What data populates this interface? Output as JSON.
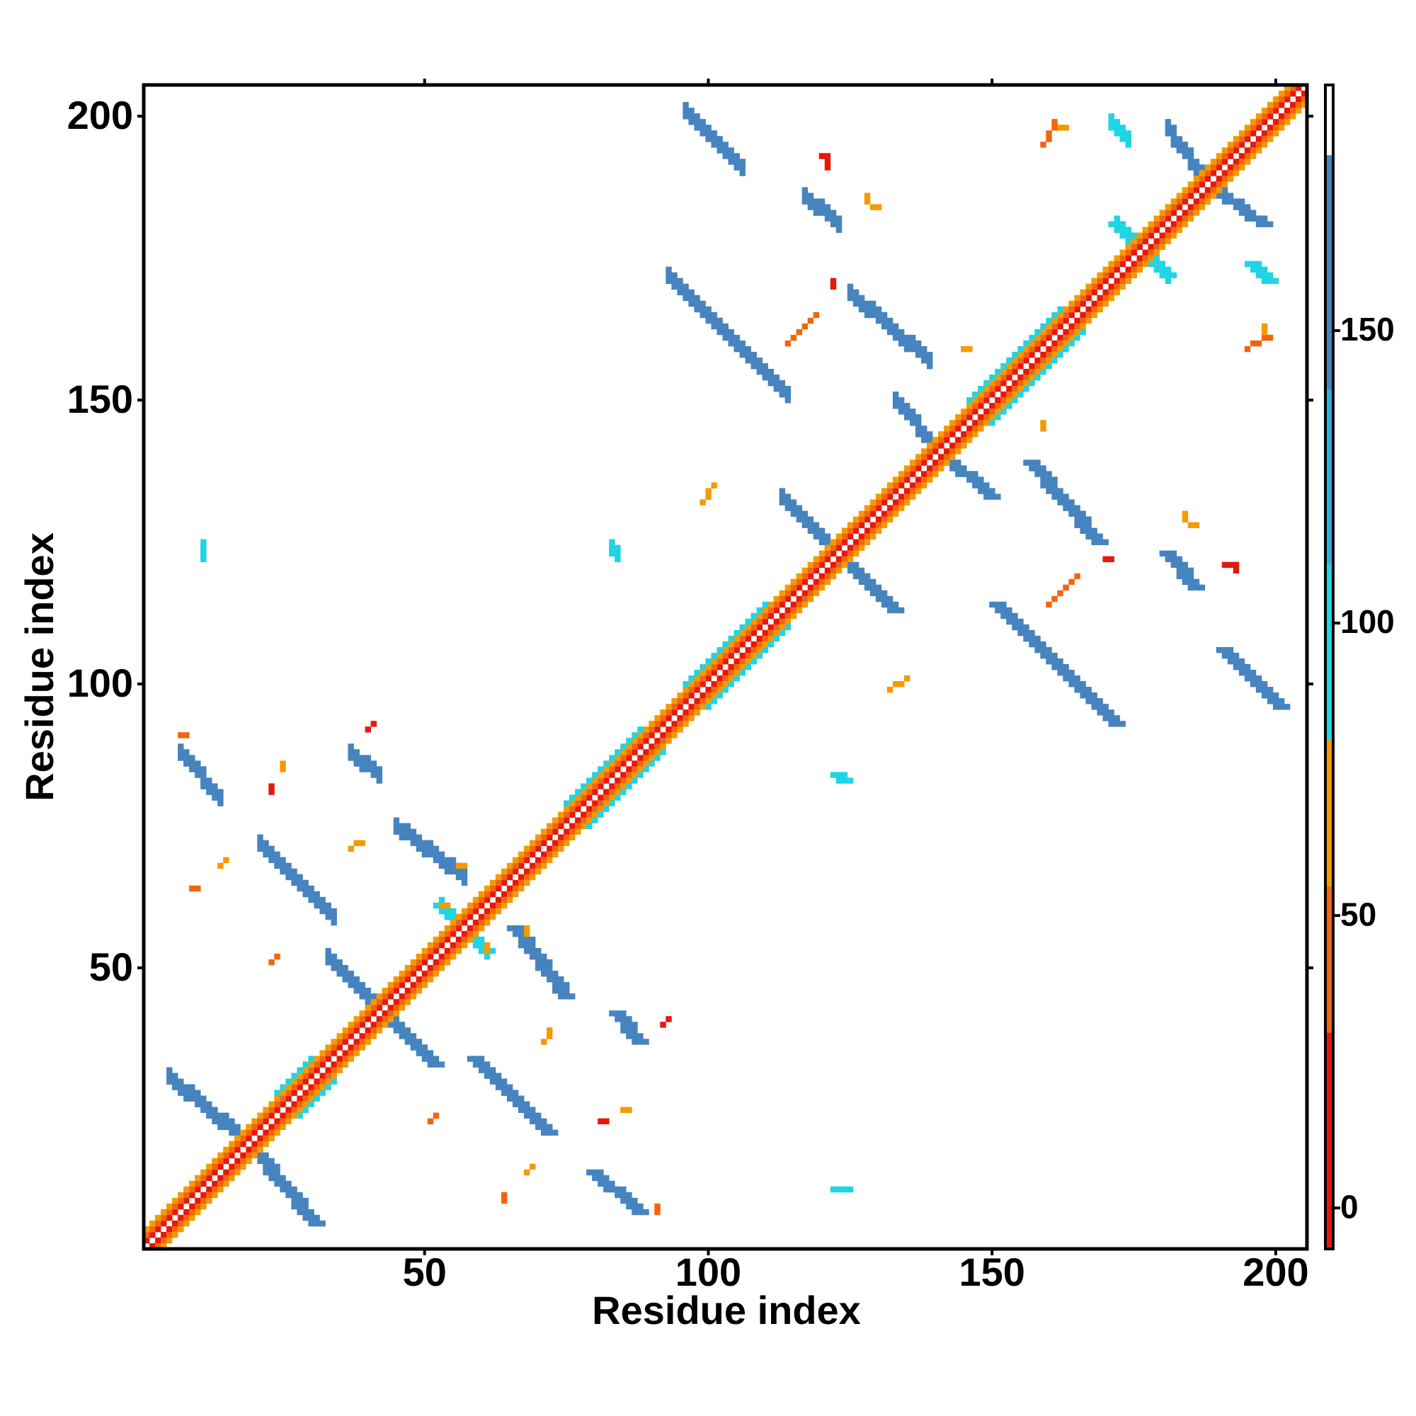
{
  "chart_data": {
    "type": "heatmap",
    "x_label": "Residue index",
    "y_label": "Residue index",
    "xlim": [
      0.5,
      205.5
    ],
    "ylim": [
      0.5,
      205.5
    ],
    "xticks": [
      50,
      100,
      150,
      200
    ],
    "yticks": [
      50,
      100,
      150,
      200
    ],
    "symmetric": true,
    "colorbar": {
      "lim": [
        -7,
        192
      ],
      "ticks": [
        0,
        50,
        100,
        150
      ],
      "bands": [
        {
          "from": -7,
          "to": 30,
          "color": "#e8170c"
        },
        {
          "from": 30,
          "to": 55,
          "color": "#f2650f"
        },
        {
          "from": 55,
          "to": 80,
          "color": "#f59a00"
        },
        {
          "from": 80,
          "to": 110,
          "color": "#20d4e4"
        },
        {
          "from": 110,
          "to": 140,
          "color": "#2eb0dc"
        },
        {
          "from": 140,
          "to": 180,
          "color": "#4684bf"
        },
        {
          "from": 180,
          "to": 192,
          "color": "#ffffff"
        }
      ]
    },
    "bands": [
      {
        "from": [
          20,
          18
        ],
        "to": [
          31,
          5
        ],
        "value": 150
      },
      {
        "from": [
          44,
          41
        ],
        "to": [
          52,
          33
        ],
        "value": 150
      },
      {
        "from": [
          53,
          61
        ],
        "to": [
          61,
          53
        ],
        "value": 100
      },
      {
        "from": [
          66,
          57
        ],
        "to": [
          75,
          45
        ],
        "value": 155
      },
      {
        "from": [
          59,
          34
        ],
        "to": [
          72,
          21
        ],
        "value": 150
      },
      {
        "from": [
          80,
          14
        ],
        "to": [
          88,
          7
        ],
        "value": 150
      },
      {
        "from": [
          84,
          42
        ],
        "to": [
          88,
          37
        ],
        "value": 145
      },
      {
        "from": [
          123,
          84
        ],
        "to": [
          124,
          83
        ],
        "value": 95
      },
      {
        "from": [
          123,
          11
        ],
        "to": [
          124,
          11
        ],
        "value": 95
      },
      {
        "from": [
          125,
          121
        ],
        "to": [
          133,
          113
        ],
        "value": 150
      },
      {
        "from": [
          142,
          140
        ],
        "to": [
          150,
          133
        ],
        "value": 150
      },
      {
        "from": [
          157,
          139
        ],
        "to": [
          169,
          125
        ],
        "value": 150
      },
      {
        "from": [
          151,
          114
        ],
        "to": [
          172,
          93
        ],
        "value": 150
      },
      {
        "from": [
          191,
          106
        ],
        "to": [
          201,
          96
        ],
        "value": 150
      },
      {
        "from": [
          181,
          123
        ],
        "to": [
          186,
          117
        ],
        "value": 150
      },
      {
        "from": [
          188,
          188
        ],
        "to": [
          198,
          181
        ],
        "value": 155
      },
      {
        "from": [
          172,
          181
        ],
        "to": [
          181,
          172
        ],
        "value": 100
      },
      {
        "from": [
          196,
          174
        ],
        "to": [
          199,
          171
        ],
        "value": 95
      }
    ],
    "lines": [
      {
        "from": [
          1,
          1
        ],
        "to": [
          205,
          205
        ],
        "value": 190
      },
      {
        "from": [
          2,
          1
        ],
        "to": [
          205,
          204
        ],
        "value": 10
      },
      {
        "from": [
          3,
          1
        ],
        "to": [
          205,
          203
        ],
        "value": 45
      },
      {
        "from": [
          4,
          1
        ],
        "to": [
          205,
          202
        ],
        "value": 65
      },
      {
        "from": [
          28,
          24
        ],
        "to": [
          34,
          30
        ],
        "value": 95
      },
      {
        "from": [
          79,
          75
        ],
        "to": [
          92,
          88
        ],
        "value": 95
      },
      {
        "from": [
          100,
          96
        ],
        "to": [
          114,
          110
        ],
        "value": 95
      },
      {
        "from": [
          150,
          146
        ],
        "to": [
          166,
          162
        ],
        "value": 95
      },
      {
        "from": [
          160,
          114
        ],
        "to": [
          165,
          119
        ],
        "value": 40
      },
      {
        "from": [
          159,
          145
        ],
        "to": [
          159,
          146
        ],
        "value": 65
      },
      {
        "from": [
          184,
          129
        ],
        "to": [
          184,
          130
        ],
        "value": 65
      },
      {
        "from": [
          191,
          121
        ],
        "to": [
          192,
          121
        ],
        "value": 20
      },
      {
        "from": [
          195,
          159
        ],
        "to": [
          199,
          161
        ],
        "value": 45
      },
      {
        "from": [
          132,
          99
        ],
        "to": [
          135,
          101
        ],
        "value": 65
      },
      {
        "from": [
          170,
          122
        ],
        "to": [
          171,
          122
        ],
        "value": 20
      },
      {
        "from": [
          198,
          162
        ],
        "to": [
          198,
          163
        ],
        "value": 65
      },
      {
        "from": [
          193,
          120
        ],
        "to": [
          193,
          121
        ],
        "value": 20
      },
      {
        "from": [
          185,
          128
        ],
        "to": [
          186,
          128
        ],
        "value": 65
      },
      {
        "from": [
          68,
          14
        ],
        "to": [
          69,
          15
        ],
        "value": 65
      },
      {
        "from": [
          64,
          9
        ],
        "to": [
          64,
          10
        ],
        "value": 45
      },
      {
        "from": [
          51,
          23
        ],
        "to": [
          52,
          24
        ],
        "value": 45
      },
      {
        "from": [
          71,
          37
        ],
        "to": [
          72,
          39
        ],
        "value": 65
      },
      {
        "from": [
          81,
          23
        ],
        "to": [
          82,
          23
        ],
        "value": 20
      },
      {
        "from": [
          85,
          25
        ],
        "to": [
          86,
          25
        ],
        "value": 65
      },
      {
        "from": [
          92,
          40
        ],
        "to": [
          93,
          41
        ],
        "value": 20
      },
      {
        "from": [
          91,
          7
        ],
        "to": [
          91,
          8
        ],
        "value": 45
      },
      {
        "from": [
          61,
          53
        ],
        "to": [
          61,
          54
        ],
        "value": 65
      },
      {
        "from": [
          68,
          56
        ],
        "to": [
          68,
          57
        ],
        "value": 65
      }
    ]
  }
}
